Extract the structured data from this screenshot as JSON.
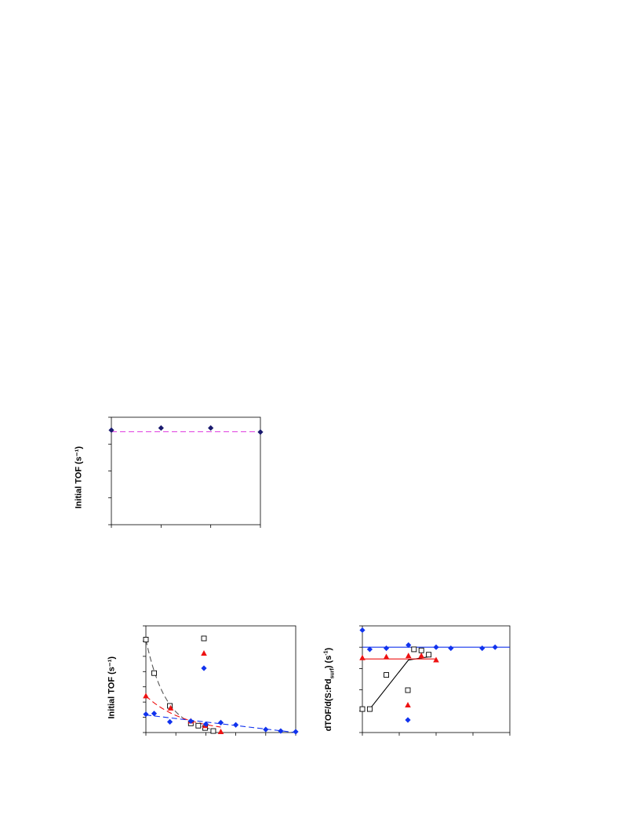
{
  "chart_data": [
    {
      "type": "scatter",
      "title": "",
      "ylabel": "Initial TOF (s⁻¹)",
      "xlim": [
        0,
        3
      ],
      "ylim": [
        0,
        4
      ],
      "xticks": 4,
      "yticks": 5,
      "grid": false,
      "series": [
        {
          "marker": "diamond",
          "color": "#1a1a6e",
          "points": [
            [
              0,
              3.52
            ],
            [
              1,
              3.6
            ],
            [
              2,
              3.6
            ],
            [
              3,
              3.45
            ]
          ]
        }
      ],
      "fit_lines": [
        {
          "style": "dashed",
          "color": "#e040e0",
          "points": [
            [
              0,
              3.46
            ],
            [
              3,
              3.46
            ]
          ]
        }
      ]
    },
    {
      "type": "scatter",
      "title": "",
      "ylabel": "Initial TOF (s⁻¹)",
      "xlim": [
        0,
        10
      ],
      "ylim": [
        0,
        7
      ],
      "xticks": 6,
      "yticks": 8,
      "grid": false,
      "legend_position": "top-center",
      "series": [
        {
          "marker": "open-square",
          "color": "#000000",
          "points": [
            [
              0,
              6.1
            ],
            [
              0.55,
              3.9
            ],
            [
              1.6,
              1.75
            ],
            [
              3,
              0.6
            ],
            [
              3.5,
              0.45
            ],
            [
              3.95,
              0.3
            ],
            [
              4.5,
              0.1
            ]
          ]
        },
        {
          "marker": "triangle",
          "color": "#ee1111",
          "points": [
            [
              0,
              2.4
            ],
            [
              1.65,
              1.6
            ],
            [
              3,
              0.75
            ],
            [
              3.95,
              0.45
            ],
            [
              5,
              0.05
            ]
          ]
        },
        {
          "marker": "diamond",
          "color": "#1133ee",
          "points": [
            [
              0,
              1.2
            ],
            [
              0.55,
              1.25
            ],
            [
              1.6,
              0.7
            ],
            [
              3,
              0.75
            ],
            [
              4,
              0.55
            ],
            [
              5,
              0.65
            ],
            [
              6,
              0.5
            ],
            [
              8,
              0.2
            ],
            [
              9,
              0.1
            ],
            [
              10,
              0.05
            ]
          ]
        }
      ],
      "fit_lines": [
        {
          "style": "dashed",
          "color": "#555555",
          "curve": "exp",
          "a": 6.1,
          "k": 0.75,
          "xmax": 4.6
        },
        {
          "style": "dashed",
          "color": "#ee1111",
          "curve": "exp",
          "a": 2.4,
          "k": 0.38,
          "xmax": 5
        },
        {
          "style": "dashed",
          "color": "#1133ee",
          "curve": "linear",
          "points": [
            [
              0,
              1.15
            ],
            [
              10,
              0
            ]
          ]
        }
      ]
    },
    {
      "type": "scatter",
      "title": "",
      "ylabel": "dTOF/d(S:Pd",
      "ylabel_sub": "surf",
      "ylabel_end": ") (s",
      "ylabel_sup": "-1",
      "ylabel_close": ")",
      "xlim": [
        0,
        4
      ],
      "ylim": [
        0,
        5
      ],
      "xticks": 5,
      "yticks": 6,
      "grid": false,
      "legend_position": "bottom-center",
      "series": [
        {
          "marker": "open-square",
          "color": "#000000",
          "points": [
            [
              0,
              1.1
            ],
            [
              0.2,
              1.1
            ],
            [
              0.65,
              2.7
            ],
            [
              1.4,
              3.9
            ],
            [
              1.6,
              3.85
            ],
            [
              1.8,
              3.65
            ]
          ]
        },
        {
          "marker": "triangle",
          "color": "#ee1111",
          "points": [
            [
              0,
              3.5
            ],
            [
              0.65,
              3.55
            ],
            [
              1.25,
              3.6
            ],
            [
              1.6,
              3.6
            ],
            [
              2,
              3.4
            ]
          ]
        },
        {
          "marker": "diamond",
          "color": "#1133ee",
          "points": [
            [
              0,
              4.8
            ],
            [
              0.2,
              3.9
            ],
            [
              0.65,
              3.95
            ],
            [
              1.25,
              4.1
            ],
            [
              2,
              4.0
            ],
            [
              2.4,
              3.95
            ],
            [
              3.25,
              3.95
            ],
            [
              3.6,
              4.0
            ]
          ]
        }
      ],
      "fit_lines": [
        {
          "style": "solid",
          "color": "#000000",
          "points": [
            [
              0.2,
              1.1
            ],
            [
              1.25,
              3.4
            ],
            [
              1.8,
              3.55
            ]
          ]
        },
        {
          "style": "solid",
          "color": "#ee1111",
          "points": [
            [
              0,
              3.45
            ],
            [
              2,
              3.45
            ]
          ]
        },
        {
          "style": "solid",
          "color": "#1133ee",
          "points": [
            [
              0,
              4.0
            ],
            [
              4,
              4.0
            ]
          ]
        }
      ]
    }
  ]
}
